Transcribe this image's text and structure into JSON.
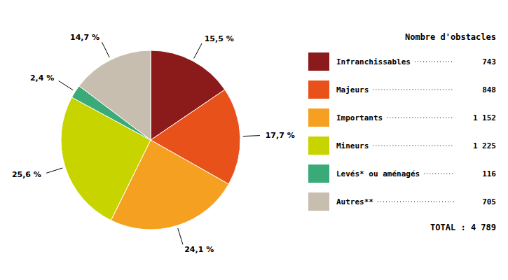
{
  "chart_data": {
    "type": "pie",
    "categories": [
      "Infranchissables",
      "Majeurs",
      "Importants",
      "Mineurs",
      "Levés* ou aménagés",
      "Autres**"
    ],
    "values": [
      15.5,
      17.7,
      24.1,
      25.6,
      2.4,
      14.7
    ],
    "value_labels": [
      "15,5 %",
      "17,7 %",
      "24,1 %",
      "25,6 %",
      "2,4 %",
      "14,7 %"
    ],
    "data_labels": true,
    "colors": [
      "#8B1A1A",
      "#E8521A",
      "#F5A020",
      "#C8D400",
      "#3AAA78",
      "#C8BEB0"
    ],
    "legend": "right",
    "legend_title": "Nombre d'obstacles",
    "counts": [
      743,
      848,
      1152,
      1225,
      116,
      705
    ],
    "count_labels": [
      "743",
      "848",
      "1 152",
      "1 225",
      "116",
      "705"
    ],
    "total": 4789,
    "total_label": "TOTAL : 4 789"
  }
}
